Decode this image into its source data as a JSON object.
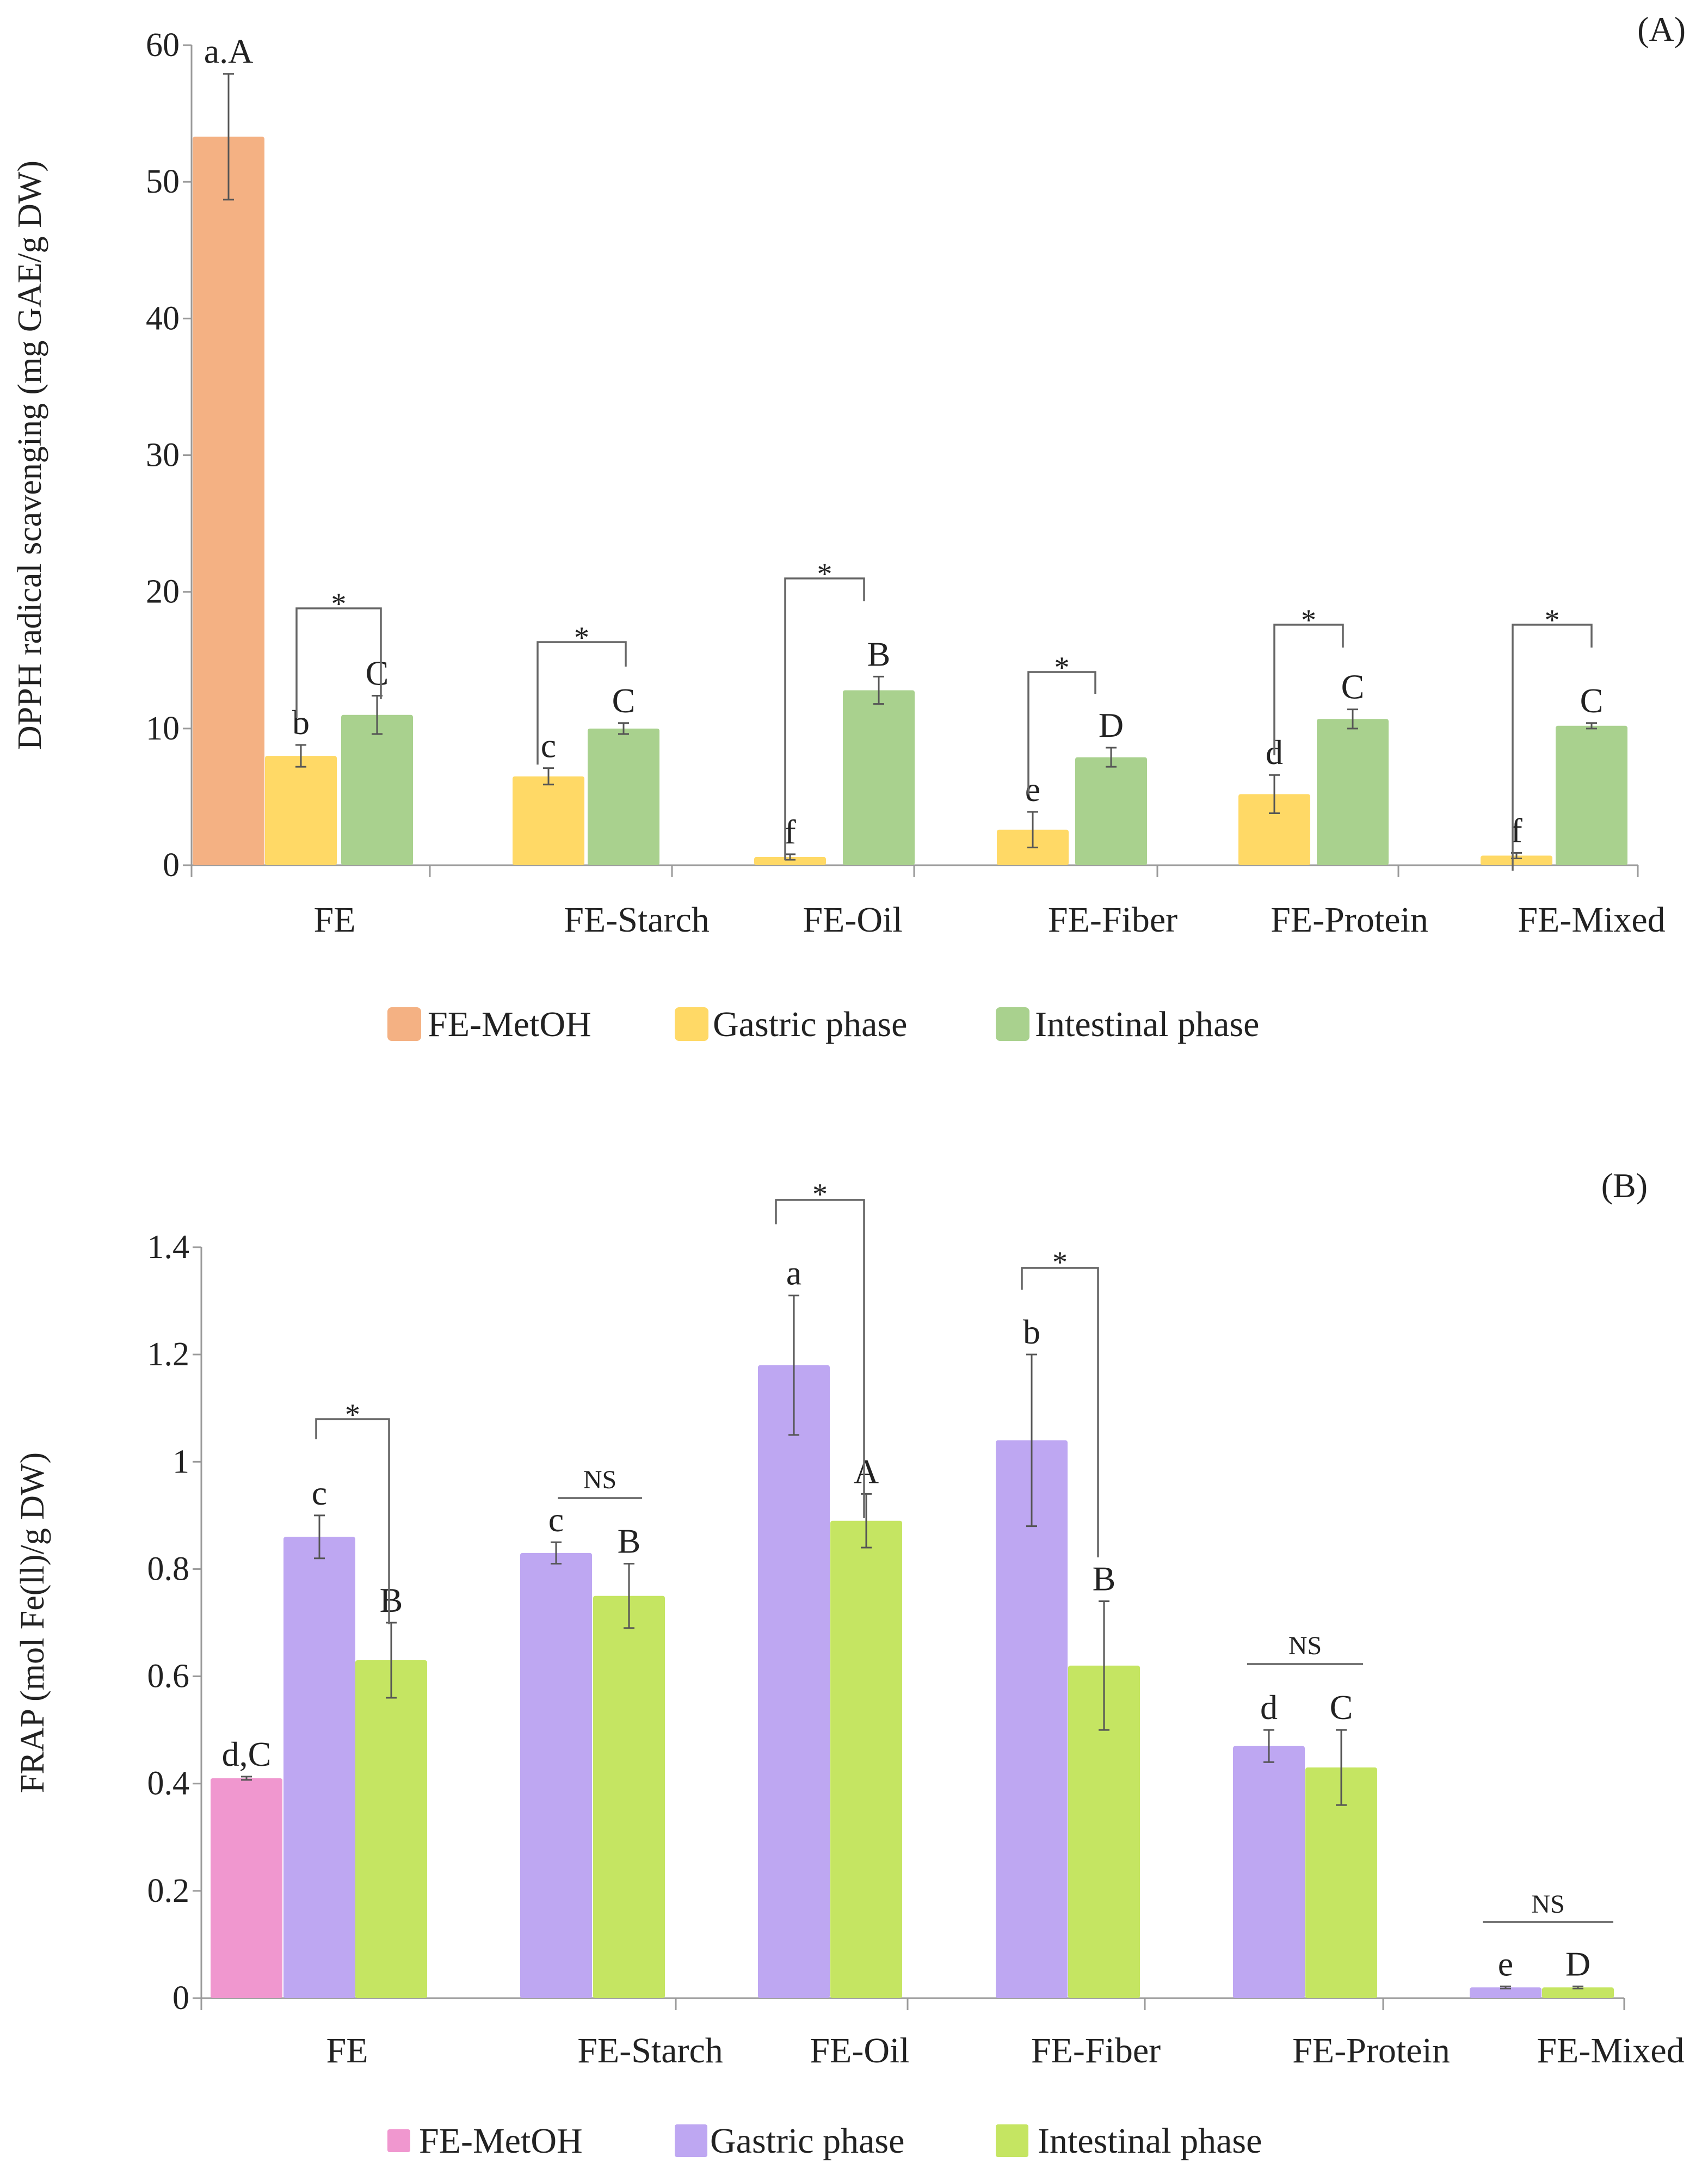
{
  "colors": {
    "FE-MetOH_A": "#f4b183",
    "Gastric_A": "#ffd966",
    "Intestinal_A": "#a9d18e",
    "FE-MetOH_B": "#f097cf",
    "Gastric_B": "#bea7f2",
    "Intestinal_B": "#c5e562"
  },
  "chart_data": [
    {
      "type": "bar",
      "panel_label": "(A)",
      "ylabel": "DPPH radical scavenging (mg GAE/g DW)",
      "xlabel": "",
      "ylim": [
        0,
        60
      ],
      "yticks": [
        "0",
        "10",
        "20",
        "30",
        "40",
        "50",
        "60"
      ],
      "categories": [
        "FE",
        "FE-Starch",
        "FE-Oil",
        "FE-Fiber",
        "FE-Protein",
        "FE-Mixed"
      ],
      "series": [
        {
          "name": "FE-MetOH",
          "values": [
            53.3,
            null,
            null,
            null,
            null,
            null
          ],
          "errors": [
            4.6,
            null,
            null,
            null,
            null,
            null
          ],
          "labels": [
            "a.A",
            "",
            "",
            "",
            "",
            ""
          ]
        },
        {
          "name": "Gastric phase",
          "values": [
            8.0,
            6.5,
            0.6,
            2.6,
            5.2,
            0.7
          ],
          "errors": [
            0.8,
            0.6,
            0.2,
            1.3,
            1.4,
            0.2
          ],
          "labels": [
            "b",
            "c",
            "f",
            "e",
            "d",
            "f"
          ]
        },
        {
          "name": "Intestinal phase",
          "values": [
            11.0,
            10.0,
            12.8,
            7.9,
            10.7,
            10.2
          ],
          "errors": [
            1.4,
            0.4,
            1.0,
            0.7,
            0.7,
            0.2
          ],
          "labels": [
            "C",
            "C",
            "B",
            "D",
            "C",
            "C"
          ]
        }
      ],
      "significance": [
        "*",
        "*",
        "*",
        "*",
        "*",
        "*"
      ],
      "legend": [
        "FE-MetOH",
        "Gastric phase",
        "Intestinal phase"
      ],
      "legend_position": "bottom",
      "grid": false
    },
    {
      "type": "bar",
      "panel_label": "(B)",
      "ylabel": "FRAP (mol Fe(ll)/g DW)",
      "xlabel": "",
      "ylim": [
        0,
        1.4
      ],
      "yticks": [
        "0",
        "0.2",
        "0.4",
        "0.6",
        "0.8",
        "1",
        "1.2",
        "1.4"
      ],
      "categories": [
        "FE",
        "FE-Starch",
        "FE-Oil",
        "FE-Fiber",
        "FE-Protein",
        "FE-Mixed"
      ],
      "series": [
        {
          "name": "FE-MetOH",
          "values": [
            0.41,
            null,
            null,
            null,
            null,
            null
          ],
          "errors": [
            0.003,
            null,
            null,
            null,
            null,
            null
          ],
          "labels": [
            "d,C",
            "",
            "",
            "",
            "",
            ""
          ]
        },
        {
          "name": "Gastric phase",
          "values": [
            0.86,
            0.83,
            1.18,
            1.04,
            0.47,
            0.02
          ],
          "errors": [
            0.04,
            0.02,
            0.13,
            0.16,
            0.03,
            0.002
          ],
          "labels": [
            "c",
            "c",
            "a",
            "b",
            "d",
            "e"
          ]
        },
        {
          "name": "Intestinal phase",
          "values": [
            0.63,
            0.75,
            0.89,
            0.62,
            0.43,
            0.02
          ],
          "errors": [
            0.07,
            0.06,
            0.05,
            0.12,
            0.07,
            0.002
          ],
          "labels": [
            "B",
            "B",
            "A",
            "B",
            "C",
            "D"
          ]
        }
      ],
      "significance": [
        "*",
        "NS",
        "*",
        "*",
        "NS",
        "NS"
      ],
      "legend": [
        "FE-MetOH",
        "Gastric phase",
        "Intestinal phase"
      ],
      "legend_position": "bottom",
      "grid": false
    }
  ]
}
